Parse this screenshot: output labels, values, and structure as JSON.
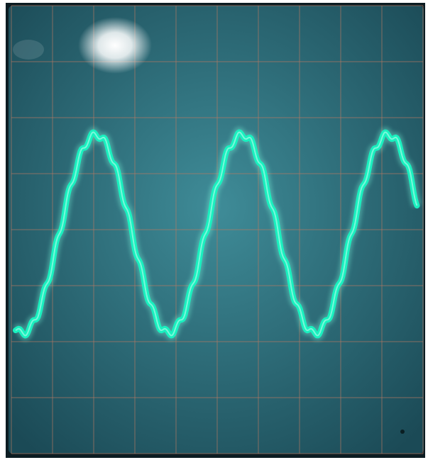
{
  "scene": {
    "subject": "oscilloscope-screen",
    "colors": {
      "screen_center": "#3f8c98",
      "screen_edge": "#1b4a56",
      "bezel": "#0c1c22",
      "graticule": "#b77a63",
      "trace": "#19f0bf",
      "trace_glow": "#7dffe1",
      "glare": "#ffffff"
    },
    "graticule": {
      "vertical_lines": 10,
      "horizontal_lines": 8
    },
    "waveform": {
      "shape": "sine-with-ripple",
      "cycles_visible": 2.75,
      "ripple_per_cycle": 12
    }
  }
}
